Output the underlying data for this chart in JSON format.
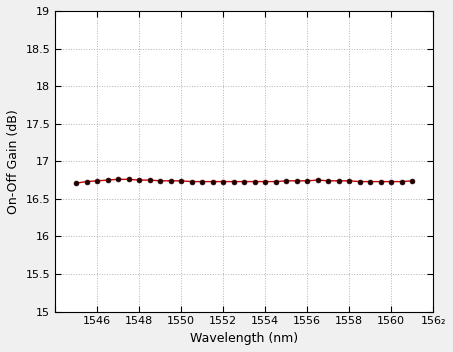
{
  "x_start": 1545,
  "x_end": 1561,
  "x_step": 0.5,
  "y_values": [
    16.71,
    16.73,
    16.74,
    16.75,
    16.76,
    16.76,
    16.75,
    16.75,
    16.74,
    16.74,
    16.74,
    16.73,
    16.73,
    16.73,
    16.73,
    16.73,
    16.73,
    16.73,
    16.73,
    16.73,
    16.74,
    16.74,
    16.74,
    16.75,
    16.74,
    16.74,
    16.74,
    16.73,
    16.73,
    16.73,
    16.73,
    16.73,
    16.74
  ],
  "line_color": "#cc0000",
  "marker_color": "#220000",
  "xlabel": "Wavelength (nm)",
  "ylabel": "On-Off Gain (dB)",
  "xlim": [
    1544,
    1562
  ],
  "ylim": [
    15,
    19
  ],
  "yticks": [
    15,
    15.5,
    16,
    16.5,
    17,
    17.5,
    18,
    18.5,
    19
  ],
  "xticks": [
    1544,
    1546,
    1548,
    1550,
    1552,
    1554,
    1556,
    1558,
    1560,
    1562
  ],
  "xtick_labels": [
    "",
    "1546",
    "1548",
    "1550",
    "1552",
    "1554",
    "1556",
    "1558",
    "1560",
    "156₂"
  ],
  "ytick_labels": [
    "15",
    "15.5",
    "16",
    "16.5",
    "17",
    "17.5",
    "18",
    "18.5",
    "19"
  ],
  "grid_color": "#aaaaaa",
  "bg_color": "#f0f0f0",
  "plot_bg_color": "#ffffff",
  "line_width": 1.0,
  "marker_size": 3.5,
  "xlabel_fontsize": 9,
  "ylabel_fontsize": 9,
  "tick_fontsize": 8
}
